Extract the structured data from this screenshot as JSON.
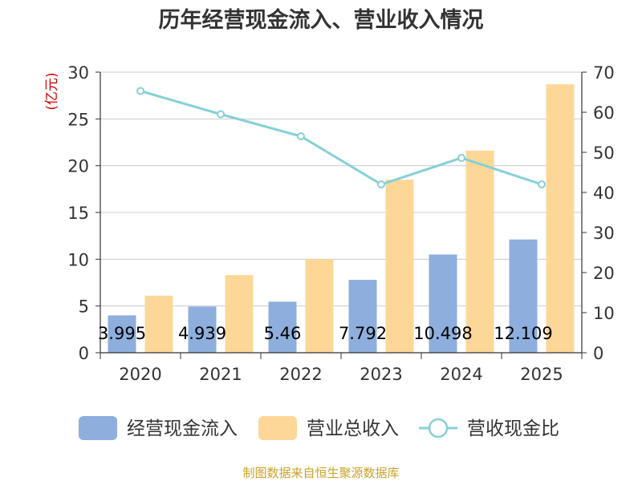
{
  "chart_data": {
    "type": "bar",
    "title": "历年经营现金流入、营业收入情况",
    "xlabel": "",
    "ylabel": "(亿元)",
    "y2label": "",
    "categories": [
      "2020",
      "2021",
      "2022",
      "2023",
      "2024",
      "2025"
    ],
    "ylim": [
      0,
      30
    ],
    "yticks": [
      0,
      5,
      10,
      15,
      20,
      25,
      30
    ],
    "y2lim": [
      0,
      70
    ],
    "y2ticks": [
      0,
      10,
      20,
      30,
      40,
      50,
      60,
      70
    ],
    "grid": true,
    "legend_position": "bottom",
    "series": [
      {
        "name": "经营现金流入",
        "type": "bar",
        "axis": "left",
        "color": "#8eaedd",
        "values": [
          3.995,
          4.939,
          5.46,
          7.792,
          10.498,
          12.109
        ],
        "labels": [
          "3.995",
          "4.939",
          "5.46",
          "7.792",
          "10.498",
          "12.109"
        ]
      },
      {
        "name": "营业总收入",
        "type": "bar",
        "axis": "left",
        "color": "#fdd797",
        "values": [
          6.1,
          8.3,
          10.0,
          18.5,
          21.6,
          28.7
        ]
      },
      {
        "name": "营收现金比",
        "type": "line",
        "axis": "right",
        "color": "#86d0d7",
        "values": [
          65.3,
          59.5,
          54.0,
          42.0,
          48.6,
          42.0
        ]
      }
    ],
    "source": "制图数据来自恒生聚源数据库"
  }
}
